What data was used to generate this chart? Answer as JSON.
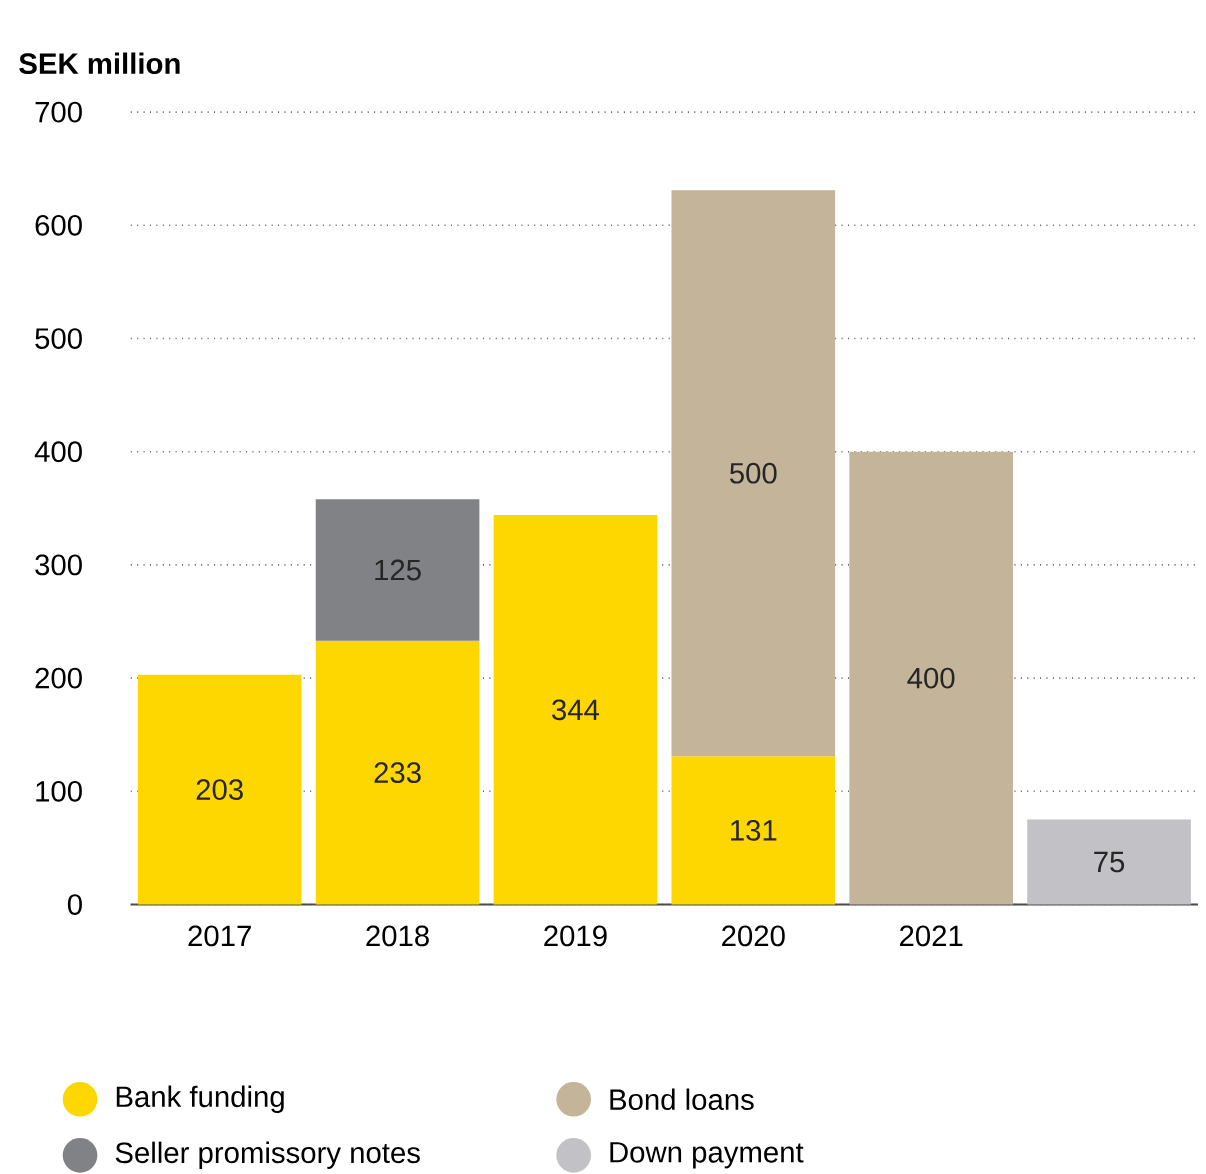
{
  "chart_data": {
    "type": "bar",
    "stacked": true,
    "ylabel": "SEK million",
    "categories": [
      "2017",
      "2018",
      "2019",
      "2020",
      "2021",
      null
    ],
    "series": [
      {
        "name": "Bank funding",
        "color": "#ffd700",
        "values": [
          203,
          233,
          344,
          131,
          null,
          null
        ]
      },
      {
        "name": "Seller promissory notes",
        "color": "#808285",
        "values": [
          null,
          125,
          null,
          null,
          null,
          null
        ]
      },
      {
        "name": "Bond loans",
        "color": "#c4b49a",
        "values": [
          null,
          null,
          null,
          500,
          400,
          null
        ]
      },
      {
        "name": "Down payment",
        "color": "#c2c2c6",
        "values": [
          null,
          null,
          null,
          null,
          null,
          75
        ]
      }
    ],
    "ylim": [
      0,
      700
    ],
    "yticks": [
      0,
      100,
      200,
      300,
      400,
      500,
      600,
      700
    ],
    "grid": "y",
    "data_labels": true,
    "legend": "bottom"
  }
}
